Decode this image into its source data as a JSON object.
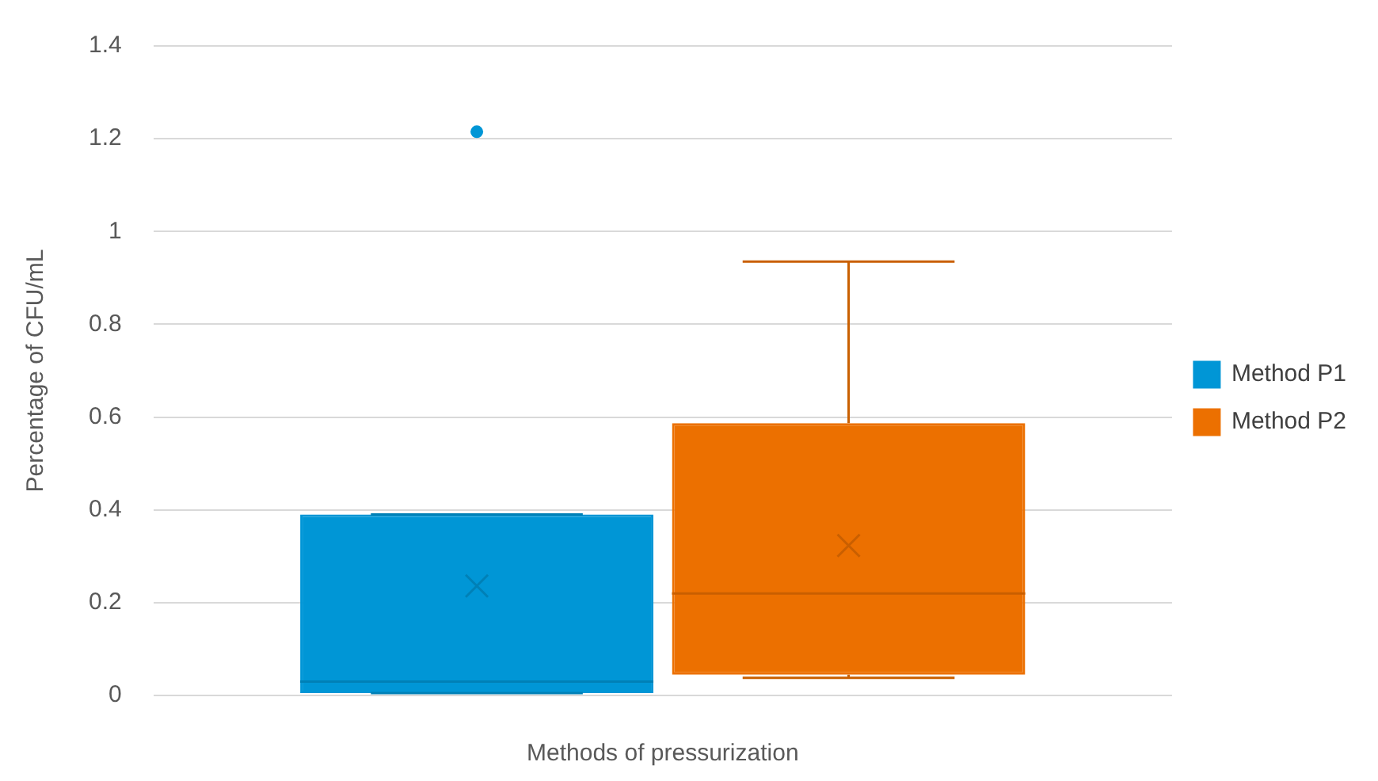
{
  "chart_data": {
    "type": "box",
    "xlabel": "Methods of pressurization",
    "ylabel": "Percentage of CFU/mL",
    "categories": [
      null
    ],
    "series": [
      {
        "name": "Method P1",
        "color": "#0096d6",
        "boxes": [
          {
            "low": 0.005,
            "q1": 0.005,
            "median": 0.03,
            "q3": 0.39,
            "high": 0.39,
            "mean": 0.236,
            "outliers": [
              1.215
            ]
          }
        ]
      },
      {
        "name": "Method P2",
        "color": "#ec7000",
        "boxes": [
          {
            "low": 0.038,
            "q1": 0.045,
            "median": 0.22,
            "q3": 0.587,
            "high": 0.935,
            "mean": 0.323
          }
        ]
      }
    ],
    "ylim": [
      0,
      1.4
    ],
    "yticks": [
      0,
      0.2,
      0.4,
      0.6,
      0.8,
      1,
      1.2,
      1.4
    ],
    "grid": "y",
    "legend": "right",
    "marker": "circle"
  }
}
